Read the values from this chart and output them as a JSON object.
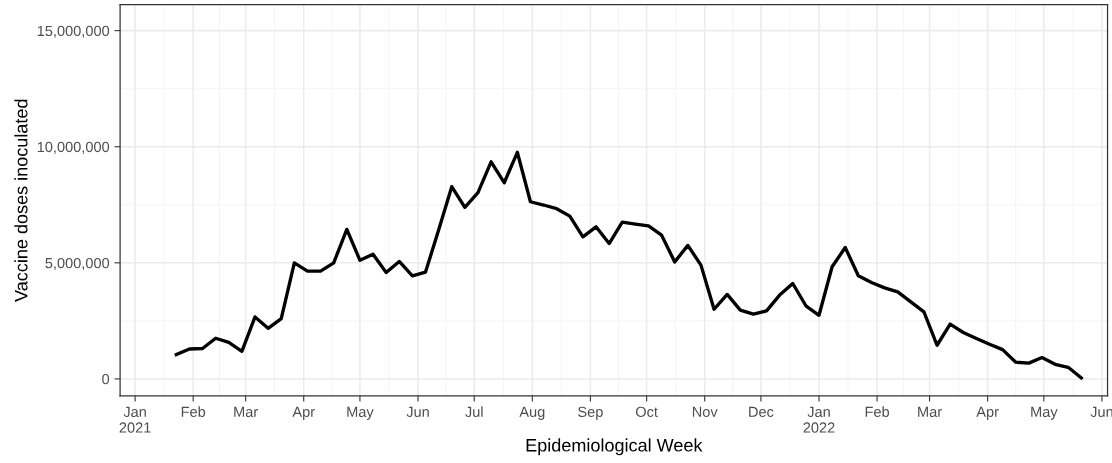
{
  "chart_data": {
    "type": "line",
    "xlabel": "Epidemiological Week",
    "ylabel": "Vaccine doses inoculated",
    "x": [
      "2021-01-23",
      "2021-01-30",
      "2021-02-06",
      "2021-02-13",
      "2021-02-20",
      "2021-02-27",
      "2021-03-06",
      "2021-03-13",
      "2021-03-20",
      "2021-03-27",
      "2021-04-03",
      "2021-04-10",
      "2021-04-17",
      "2021-04-24",
      "2021-05-01",
      "2021-05-08",
      "2021-05-15",
      "2021-05-22",
      "2021-05-29",
      "2021-06-05",
      "2021-06-12",
      "2021-06-19",
      "2021-06-26",
      "2021-07-03",
      "2021-07-10",
      "2021-07-17",
      "2021-07-24",
      "2021-07-31",
      "2021-08-07",
      "2021-08-14",
      "2021-08-21",
      "2021-08-28",
      "2021-09-04",
      "2021-09-11",
      "2021-09-18",
      "2021-09-25",
      "2021-10-02",
      "2021-10-09",
      "2021-10-16",
      "2021-10-23",
      "2021-10-30",
      "2021-11-06",
      "2021-11-13",
      "2021-11-20",
      "2021-11-27",
      "2021-12-04",
      "2021-12-11",
      "2021-12-18",
      "2021-12-25",
      "2022-01-01",
      "2022-01-08",
      "2022-01-15",
      "2022-01-22",
      "2022-01-29",
      "2022-02-05",
      "2022-02-12",
      "2022-02-19",
      "2022-02-26",
      "2022-03-05",
      "2022-03-12",
      "2022-03-19",
      "2022-03-26",
      "2022-04-02",
      "2022-04-09",
      "2022-04-16",
      "2022-04-23",
      "2022-04-30",
      "2022-05-07",
      "2022-05-14",
      "2022-05-21"
    ],
    "series": [
      {
        "color": "#000000",
        "values": [
          1050000,
          1290000,
          1310000,
          1750000,
          1570000,
          1190000,
          2670000,
          2180000,
          2600000,
          5000000,
          4640000,
          4640000,
          5000000,
          6440000,
          5110000,
          5370000,
          4580000,
          5060000,
          4440000,
          4600000,
          6410000,
          8280000,
          7390000,
          8020000,
          9350000,
          8450000,
          9760000,
          7630000,
          7490000,
          7330000,
          7010000,
          6120000,
          6550000,
          5830000,
          6750000,
          6670000,
          6590000,
          6190000,
          5040000,
          5750000,
          4900000,
          3000000,
          3640000,
          2960000,
          2790000,
          2930000,
          3610000,
          4110000,
          3150000,
          2740000,
          4830000,
          5660000,
          4440000,
          4150000,
          3920000,
          3750000,
          3320000,
          2890000,
          1450000,
          2360000,
          2000000,
          1740000,
          1490000,
          1260000,
          720000,
          680000,
          920000,
          630000,
          500000,
          40000
        ]
      }
    ],
    "xlim": [
      "2020-12-24",
      "2022-06-04"
    ],
    "xticks": [
      {
        "value": "2021-01-01",
        "label": "Jan\n2021"
      },
      {
        "value": "2021-02-01",
        "label": "Feb"
      },
      {
        "value": "2021-03-01",
        "label": "Mar"
      },
      {
        "value": "2021-04-01",
        "label": "Apr"
      },
      {
        "value": "2021-05-01",
        "label": "May"
      },
      {
        "value": "2021-06-01",
        "label": "Jun"
      },
      {
        "value": "2021-07-01",
        "label": "Jul"
      },
      {
        "value": "2021-08-01",
        "label": "Aug"
      },
      {
        "value": "2021-09-01",
        "label": "Sep"
      },
      {
        "value": "2021-10-01",
        "label": "Oct"
      },
      {
        "value": "2021-11-01",
        "label": "Nov"
      },
      {
        "value": "2021-12-01",
        "label": "Dec"
      },
      {
        "value": "2022-01-01",
        "label": "Jan\n2022"
      },
      {
        "value": "2022-02-01",
        "label": "Feb"
      },
      {
        "value": "2022-03-01",
        "label": "Mar"
      },
      {
        "value": "2022-04-01",
        "label": "Apr"
      },
      {
        "value": "2022-05-01",
        "label": "May"
      },
      {
        "value": "2022-06-01",
        "label": "Jun"
      }
    ],
    "ylim": [
      -730000,
      16120000
    ],
    "yticks": [
      {
        "value": 0,
        "label": "0"
      },
      {
        "value": 5000000,
        "label": "5,000,000"
      },
      {
        "value": 10000000,
        "label": "10,000,000"
      },
      {
        "value": 15000000,
        "label": "15,000,000"
      }
    ],
    "grid": true,
    "marker": "none",
    "line_style": "solid"
  }
}
